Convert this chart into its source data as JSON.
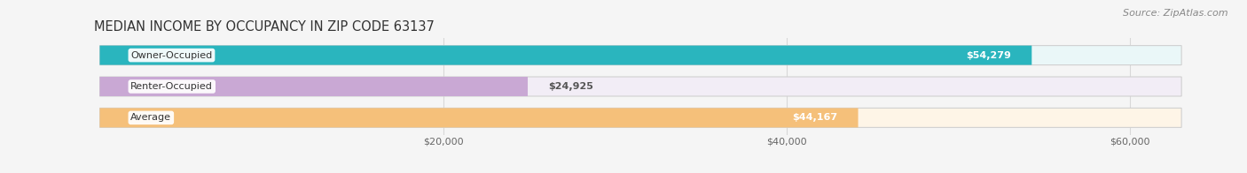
{
  "title": "MEDIAN INCOME BY OCCUPANCY IN ZIP CODE 63137",
  "source": "Source: ZipAtlas.com",
  "categories": [
    "Owner-Occupied",
    "Renter-Occupied",
    "Average"
  ],
  "values": [
    54279,
    24925,
    44167
  ],
  "bar_colors": [
    "#2ab5be",
    "#c9a8d4",
    "#f5c07a"
  ],
  "bar_bg_colors": [
    "#eaf7f8",
    "#f2edf6",
    "#fef5e7"
  ],
  "value_labels": [
    "$54,279",
    "$24,925",
    "$44,167"
  ],
  "value_inside": [
    true,
    false,
    true
  ],
  "xlim_max": 65000,
  "bar_xlim_max": 63000,
  "xticks": [
    20000,
    40000,
    60000
  ],
  "xticklabels": [
    "$20,000",
    "$40,000",
    "$60,000"
  ],
  "title_fontsize": 10.5,
  "source_fontsize": 8,
  "bar_label_fontsize": 8,
  "cat_label_fontsize": 8,
  "background_color": "#f5f5f5",
  "bar_edge_color": "#d0d0d0",
  "grid_color": "#d8d8d8"
}
